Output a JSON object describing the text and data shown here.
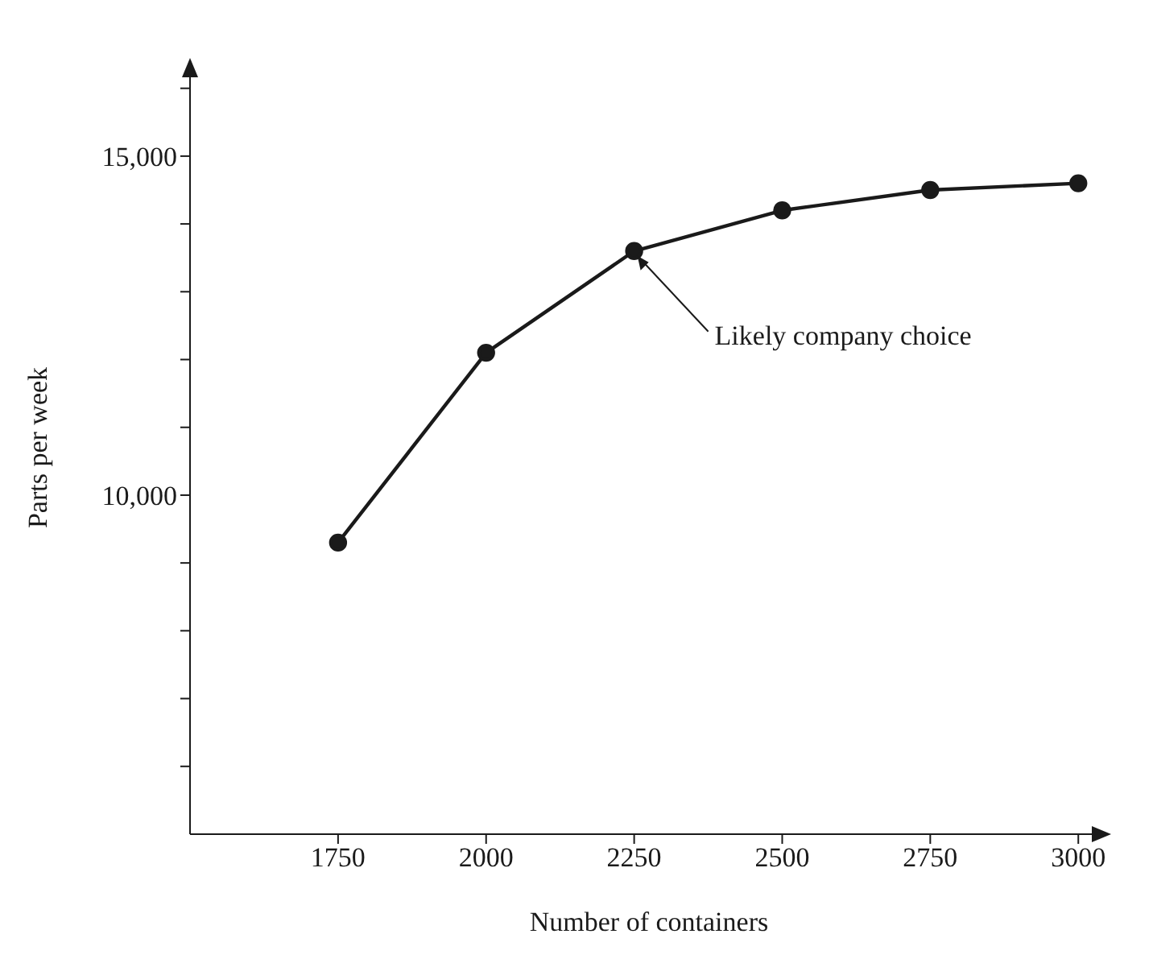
{
  "chart_data": {
    "type": "line",
    "xlabel": "Number of containers",
    "ylabel": "Parts per week",
    "x": [
      1750,
      2000,
      2250,
      2500,
      2750,
      3000
    ],
    "series": [
      {
        "color": "#1a1a1a",
        "values": [
          9300,
          12100,
          13600,
          14200,
          14500,
          14600
        ]
      }
    ],
    "xlim": [
      1500,
      3050
    ],
    "xticks": [
      1750,
      2000,
      2250,
      2500,
      2750,
      3000
    ],
    "ylim": [
      5000,
      16400
    ],
    "yticks": [
      {
        "value": 6000,
        "label": null
      },
      {
        "value": 7000,
        "label": null
      },
      {
        "value": 8000,
        "label": null
      },
      {
        "value": 9000,
        "label": null
      },
      {
        "value": 10000,
        "label": "10,000"
      },
      {
        "value": 11000,
        "label": null
      },
      {
        "value": 12000,
        "label": null
      },
      {
        "value": 13000,
        "label": null
      },
      {
        "value": 14000,
        "label": null
      },
      {
        "value": 15000,
        "label": "15,000"
      },
      {
        "value": 16000,
        "label": null
      }
    ],
    "annotations": [
      {
        "text": "Likely company choice",
        "x": 2250,
        "y": 13600
      }
    ],
    "grid": false,
    "legend": false,
    "marker": "circle",
    "line_style": "solid"
  }
}
